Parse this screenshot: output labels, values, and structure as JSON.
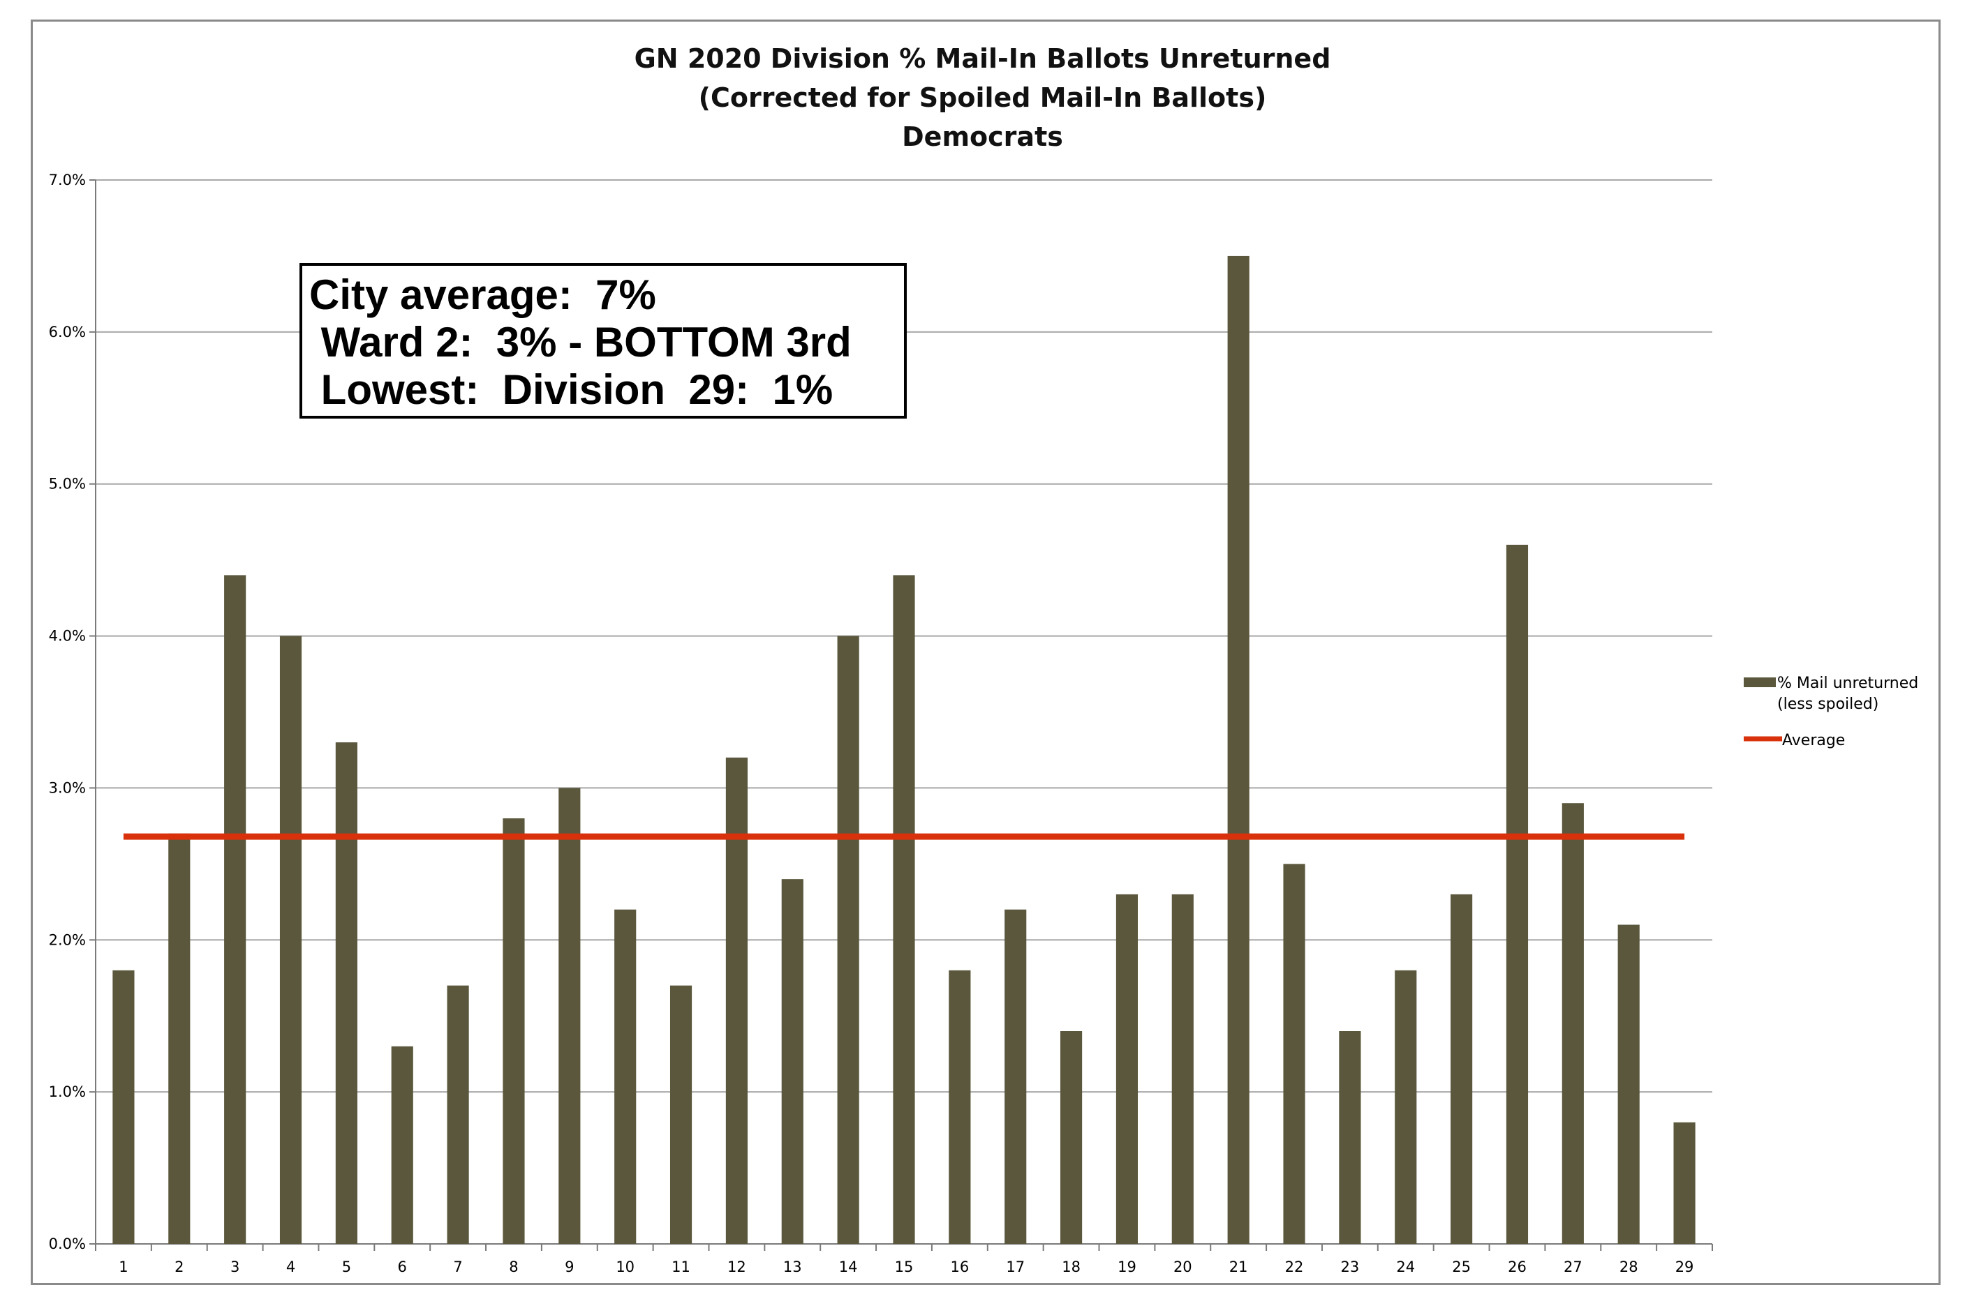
{
  "chart_data": {
    "type": "bar",
    "title": [
      "GN 2020 Division % Mail-In Ballots Unreturned",
      "(Corrected for Spoiled Mail-In Ballots)",
      "Democrats"
    ],
    "categories": [
      "1",
      "2",
      "3",
      "4",
      "5",
      "6",
      "7",
      "8",
      "9",
      "10",
      "11",
      "12",
      "13",
      "14",
      "15",
      "16",
      "17",
      "18",
      "19",
      "20",
      "21",
      "22",
      "23",
      "24",
      "25",
      "26",
      "27",
      "28",
      "29"
    ],
    "series": [
      {
        "name": "% Mail unreturned (less spoiled)",
        "legend_lines": [
          "% Mail unreturned",
          "(less spoiled)"
        ],
        "color": "#5a573c",
        "values": [
          1.8,
          2.7,
          4.4,
          4.0,
          3.3,
          1.3,
          1.7,
          2.8,
          3.0,
          2.2,
          1.7,
          3.2,
          2.4,
          4.0,
          4.4,
          1.8,
          2.2,
          1.4,
          2.3,
          2.3,
          6.5,
          2.5,
          1.4,
          1.8,
          2.3,
          4.6,
          2.9,
          2.1,
          0.8
        ]
      }
    ],
    "average": {
      "name": "Average",
      "value": 2.68,
      "color": "#d9310c"
    },
    "ylim": [
      0,
      7
    ],
    "yticks": [
      "0.0%",
      "1.0%",
      "2.0%",
      "3.0%",
      "4.0%",
      "5.0%",
      "6.0%",
      "7.0%"
    ],
    "xlabel": "",
    "ylabel": "",
    "grid": true,
    "legend": "right"
  },
  "annotation": {
    "lines": [
      "City average:  7%",
      " Ward 2:  3% - BOTTOM 3rd",
      " Lowest:  Division  29:  1%"
    ]
  }
}
